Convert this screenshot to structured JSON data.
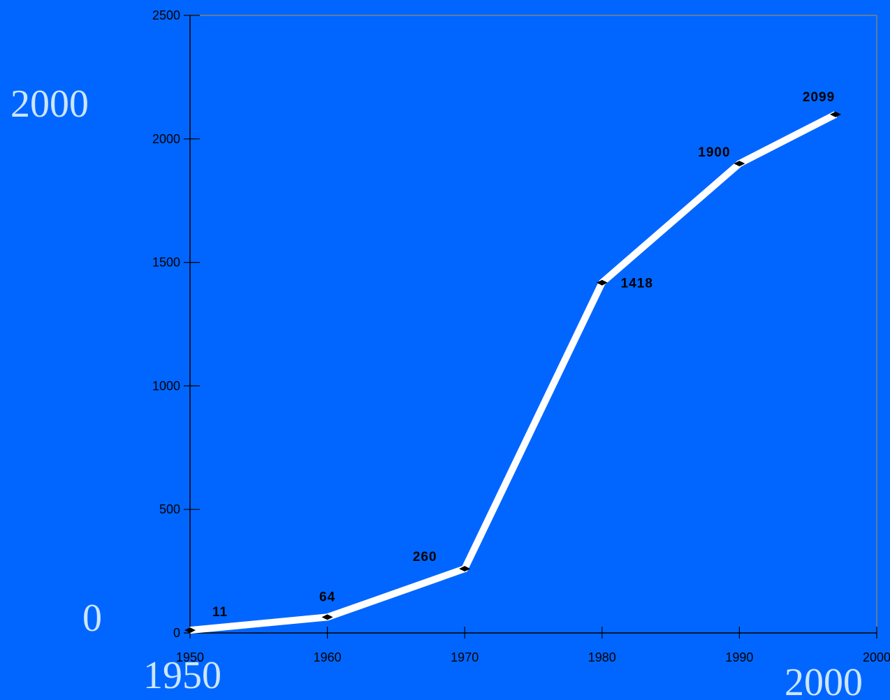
{
  "chart_data": {
    "type": "line",
    "x": [
      1950,
      1960,
      1970,
      1980,
      1990,
      1997
    ],
    "values": [
      11,
      64,
      260,
      1418,
      1900,
      2099
    ],
    "data_labels": [
      "11",
      "64",
      "260",
      "1418",
      "1900",
      "2099"
    ],
    "x_ticks": [
      1950,
      1960,
      1970,
      1980,
      1990,
      2000
    ],
    "y_ticks": [
      0,
      500,
      1000,
      1500,
      2000,
      2500
    ],
    "xlim": [
      1950,
      2000
    ],
    "ylim": [
      0,
      2500
    ],
    "grid": false,
    "line_color": "#ffffff",
    "marker_color": "#000000",
    "background_color": "#0066ff"
  },
  "annotations": {
    "y_top": "2000",
    "y_bottom": "0",
    "x_left": "1950",
    "x_right": "2000"
  },
  "colors": {
    "annotation_text": "#cce6ff",
    "axis": "#000000",
    "frame": "#808080"
  }
}
